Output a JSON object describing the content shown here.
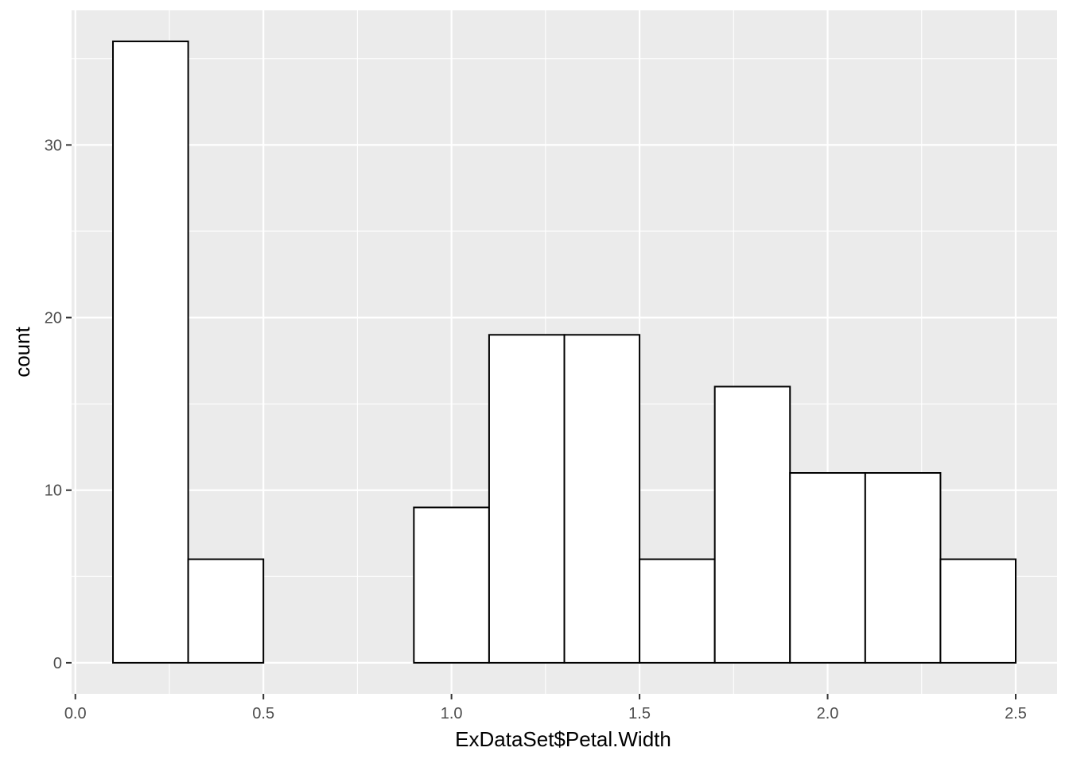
{
  "chart_data": {
    "type": "bar",
    "subtype": "histogram",
    "title": "",
    "xlabel": "ExDataSet$Petal.Width",
    "ylabel": "count",
    "bins": [
      {
        "x0": 0.1,
        "x1": 0.3,
        "count": 36
      },
      {
        "x0": 0.3,
        "x1": 0.5,
        "count": 6
      },
      {
        "x0": 0.5,
        "x1": 0.7,
        "count": 0
      },
      {
        "x0": 0.7,
        "x1": 0.9,
        "count": 0
      },
      {
        "x0": 0.9,
        "x1": 1.1,
        "count": 9
      },
      {
        "x0": 1.1,
        "x1": 1.3,
        "count": 19
      },
      {
        "x0": 1.3,
        "x1": 1.5,
        "count": 19
      },
      {
        "x0": 1.5,
        "x1": 1.7,
        "count": 6
      },
      {
        "x0": 1.7,
        "x1": 1.9,
        "count": 16
      },
      {
        "x0": 1.9,
        "x1": 2.1,
        "count": 11
      },
      {
        "x0": 2.1,
        "x1": 2.3,
        "count": 11
      },
      {
        "x0": 2.3,
        "x1": 2.5,
        "count": 6
      }
    ],
    "xlim": [
      -0.01,
      2.61
    ],
    "ylim": [
      -1.8,
      37.8
    ],
    "x_ticks": [
      0.0,
      0.5,
      1.0,
      1.5,
      2.0,
      2.5
    ],
    "x_tick_labels": [
      "0.0",
      "0.5",
      "1.0",
      "1.5",
      "2.0",
      "2.5"
    ],
    "y_ticks": [
      0,
      10,
      20,
      30
    ],
    "y_tick_labels": [
      "0",
      "10",
      "20",
      "30"
    ],
    "grid": true,
    "legend": "none",
    "colors": {
      "panel_background": "#EBEBEB",
      "grid_line": "#FFFFFF",
      "bar_fill": "#FFFFFF",
      "bar_outline": "#000000",
      "tick_label": "#4D4D4D",
      "axis_title": "#000000"
    }
  }
}
